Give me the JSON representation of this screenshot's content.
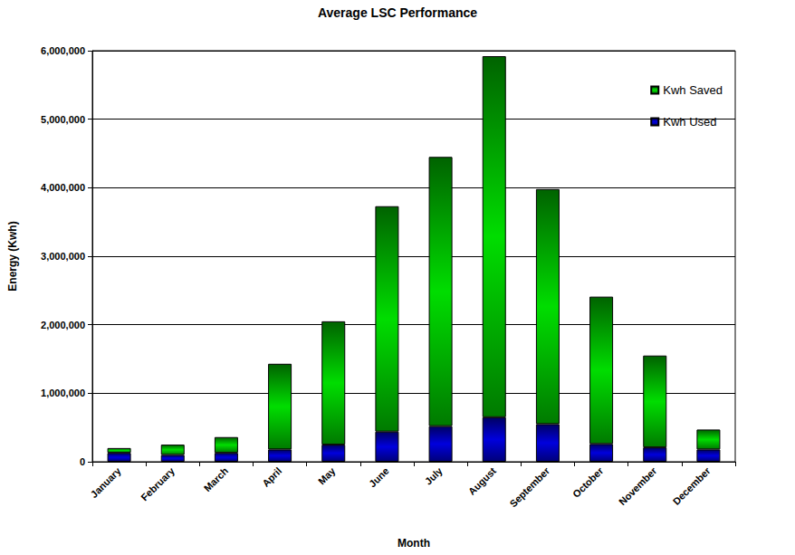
{
  "chart_data": {
    "type": "bar",
    "title": "Average LSC Performance",
    "x_label": "Month",
    "y_label": "Energy (Kwh)",
    "categories": [
      "January",
      "February",
      "March",
      "April",
      "May",
      "June",
      "July",
      "August",
      "September",
      "October",
      "November",
      "December"
    ],
    "stacked": true,
    "series": [
      {
        "name": "Kwh Saved",
        "color": "#00dd00",
        "values": [
          70000,
          150000,
          230000,
          1250000,
          1800000,
          3290000,
          3930000,
          5270000,
          3430000,
          2150000,
          1340000,
          290000
        ]
      },
      {
        "name": "Kwh Used",
        "color": "#0000dd",
        "values": [
          130000,
          100000,
          130000,
          180000,
          250000,
          440000,
          520000,
          650000,
          550000,
          260000,
          210000,
          180000
        ]
      }
    ],
    "ylim": [
      0,
      6000000
    ],
    "yticks": [
      0,
      {
        "value": 1000000,
        "label": "1,000,000"
      },
      {
        "value": 2000000,
        "label": "2,000,000"
      },
      {
        "value": 3000000,
        "label": "3,000,000"
      },
      {
        "value": 4000000,
        "label": "4,000,000"
      },
      {
        "value": 5000000,
        "label": "5,000,000"
      },
      {
        "value": 6000000,
        "label": "6,000,000"
      }
    ],
    "grid": true,
    "legend": "upper right"
  }
}
